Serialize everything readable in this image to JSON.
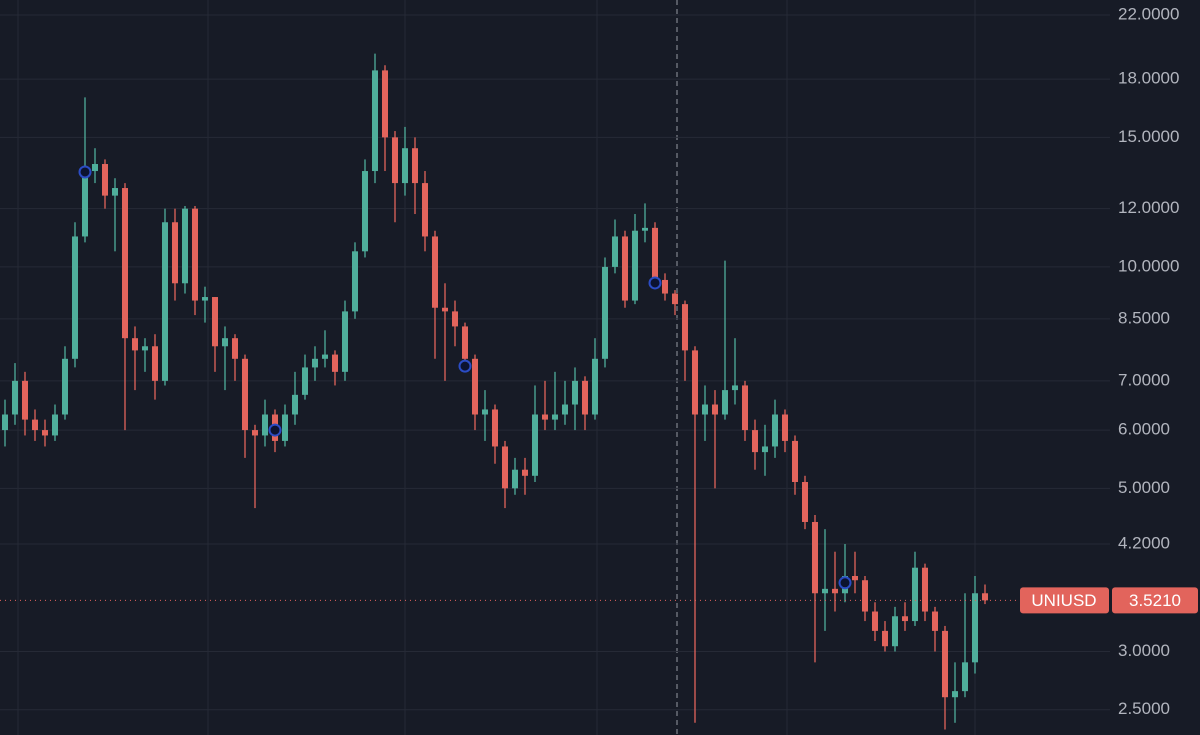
{
  "chart_data": {
    "type": "candlestick",
    "log_scale": true,
    "grid": true,
    "up_color": "#4fae9b",
    "down_color": "#e2645c",
    "marker_color": "#2b4cc4",
    "ylim": [
      2.31,
      23.06
    ],
    "yticks": [
      {
        "value": 22,
        "label": "22.0000"
      },
      {
        "value": 18,
        "label": "18.0000"
      },
      {
        "value": 15,
        "label": "15.0000"
      },
      {
        "value": 12,
        "label": "12.0000"
      },
      {
        "value": 10,
        "label": "10.0000"
      },
      {
        "value": 8.5,
        "label": "8.5000"
      },
      {
        "value": 7,
        "label": "7.0000"
      },
      {
        "value": 6,
        "label": "6.0000"
      },
      {
        "value": 5,
        "label": "5.0000"
      },
      {
        "value": 4.2,
        "label": "4.2000"
      },
      {
        "value": 3,
        "label": "3.0000"
      },
      {
        "value": 2.5,
        "label": "2.5000"
      }
    ],
    "open": [
      6.0,
      6.3,
      7.0,
      6.2,
      6.0,
      5.9,
      6.3,
      7.5,
      11.0,
      13.5,
      13.8,
      12.5,
      12.8,
      8.0,
      7.7,
      7.8,
      7.0,
      11.5,
      9.5,
      12.0,
      9.0,
      9.1,
      7.8,
      8.0,
      7.5,
      6.0,
      5.9,
      6.3,
      5.8,
      6.3,
      6.7,
      7.3,
      7.5,
      7.6,
      7.2,
      8.7,
      10.5,
      13.5,
      18.5,
      15.0,
      13.0,
      14.5,
      13.0,
      11.0,
      8.8,
      8.7,
      8.3,
      7.5,
      6.3,
      6.4,
      5.7,
      5.0,
      5.3,
      5.2,
      6.3,
      6.2,
      6.3,
      6.5,
      7.0,
      6.3,
      7.5,
      10.0,
      11.0,
      9.0,
      11.2,
      11.3,
      9.6,
      9.2,
      8.9,
      7.7,
      6.3,
      6.5,
      6.3,
      6.8,
      6.9,
      6.0,
      5.6,
      5.7,
      6.3,
      5.8,
      5.1,
      4.5,
      3.6,
      3.65,
      3.6,
      3.8,
      3.75,
      3.4,
      3.2,
      3.05,
      3.35,
      3.3,
      3.9,
      3.4,
      3.2,
      2.6,
      2.65,
      2.9,
      3.6
    ],
    "high": [
      6.6,
      7.4,
      7.2,
      6.4,
      6.2,
      6.5,
      7.8,
      11.5,
      17.0,
      14.5,
      14.0,
      13.2,
      13.0,
      8.3,
      8.0,
      8.1,
      12.0,
      12.0,
      12.1,
      12.1,
      9.4,
      9.1,
      8.3,
      8.1,
      7.6,
      6.1,
      6.6,
      6.4,
      6.5,
      7.2,
      7.6,
      7.8,
      8.2,
      7.7,
      9.0,
      10.8,
      14.0,
      19.5,
      18.8,
      15.3,
      15.5,
      15.0,
      13.5,
      11.2,
      9.5,
      9.0,
      8.4,
      7.6,
      6.8,
      6.5,
      5.8,
      5.5,
      5.5,
      6.9,
      7.0,
      7.2,
      7.0,
      7.3,
      7.1,
      8.0,
      10.3,
      11.6,
      11.2,
      11.8,
      12.2,
      11.5,
      9.8,
      9.3,
      9.0,
      7.8,
      6.9,
      6.8,
      10.2,
      8.0,
      7.0,
      6.2,
      6.1,
      6.6,
      6.4,
      5.9,
      5.2,
      4.6,
      4.4,
      4.1,
      4.2,
      4.1,
      3.8,
      3.5,
      3.3,
      3.45,
      3.5,
      4.1,
      3.95,
      3.45,
      3.25,
      2.9,
      3.6,
      3.8,
      3.7
    ],
    "low": [
      5.7,
      6.1,
      5.9,
      5.8,
      5.7,
      5.8,
      6.2,
      7.3,
      10.8,
      13.0,
      12.0,
      10.5,
      6.0,
      6.8,
      7.2,
      6.6,
      6.9,
      9.0,
      9.2,
      8.6,
      8.4,
      7.2,
      6.8,
      7.0,
      5.5,
      4.7,
      5.7,
      5.6,
      5.7,
      6.1,
      6.6,
      7.0,
      7.3,
      6.9,
      7.0,
      8.5,
      10.3,
      13.0,
      13.5,
      11.5,
      12.5,
      11.8,
      10.5,
      7.5,
      7.0,
      7.8,
      7.2,
      6.0,
      5.8,
      5.4,
      4.7,
      4.9,
      4.9,
      5.1,
      6.0,
      6.0,
      6.1,
      6.0,
      6.0,
      6.2,
      7.3,
      9.8,
      8.8,
      8.9,
      10.8,
      9.4,
      9.0,
      8.6,
      7.0,
      2.4,
      5.8,
      5.0,
      6.2,
      6.5,
      5.8,
      5.3,
      5.2,
      5.5,
      5.6,
      4.9,
      4.4,
      2.9,
      3.2,
      3.4,
      3.5,
      3.6,
      3.3,
      3.1,
      3.0,
      3.0,
      3.2,
      3.25,
      3.3,
      3.0,
      2.35,
      2.4,
      2.6,
      2.8,
      3.48
    ],
    "close": [
      6.3,
      7.0,
      6.2,
      6.0,
      5.9,
      6.3,
      7.5,
      11.0,
      13.5,
      13.8,
      12.5,
      12.8,
      8.0,
      7.7,
      7.8,
      7.0,
      11.5,
      9.5,
      12.0,
      9.0,
      9.1,
      7.8,
      8.0,
      7.5,
      6.0,
      5.9,
      6.3,
      5.8,
      6.3,
      6.7,
      7.3,
      7.5,
      7.6,
      7.2,
      8.7,
      10.5,
      13.5,
      18.5,
      15.0,
      13.0,
      14.5,
      13.0,
      11.0,
      8.8,
      8.7,
      8.3,
      7.5,
      6.3,
      6.4,
      5.7,
      5.0,
      5.3,
      5.2,
      6.3,
      6.2,
      6.3,
      6.5,
      7.0,
      6.3,
      7.5,
      10.0,
      11.0,
      9.0,
      11.2,
      11.3,
      9.6,
      9.2,
      8.9,
      7.7,
      6.3,
      6.5,
      6.3,
      6.8,
      6.9,
      6.0,
      5.6,
      5.7,
      6.3,
      5.8,
      5.1,
      4.5,
      3.6,
      3.65,
      3.6,
      3.8,
      3.75,
      3.4,
      3.2,
      3.05,
      3.35,
      3.3,
      3.9,
      3.4,
      3.2,
      2.6,
      2.65,
      2.9,
      3.6,
      3.521
    ],
    "markers": {
      "x": [
        8,
        27,
        46,
        65,
        84
      ],
      "values": [
        13.46,
        6.0,
        7.33,
        9.51,
        3.72
      ]
    },
    "last_price": {
      "name": "UNIUSD",
      "value": 3.521,
      "value_label": "3.5210"
    }
  }
}
